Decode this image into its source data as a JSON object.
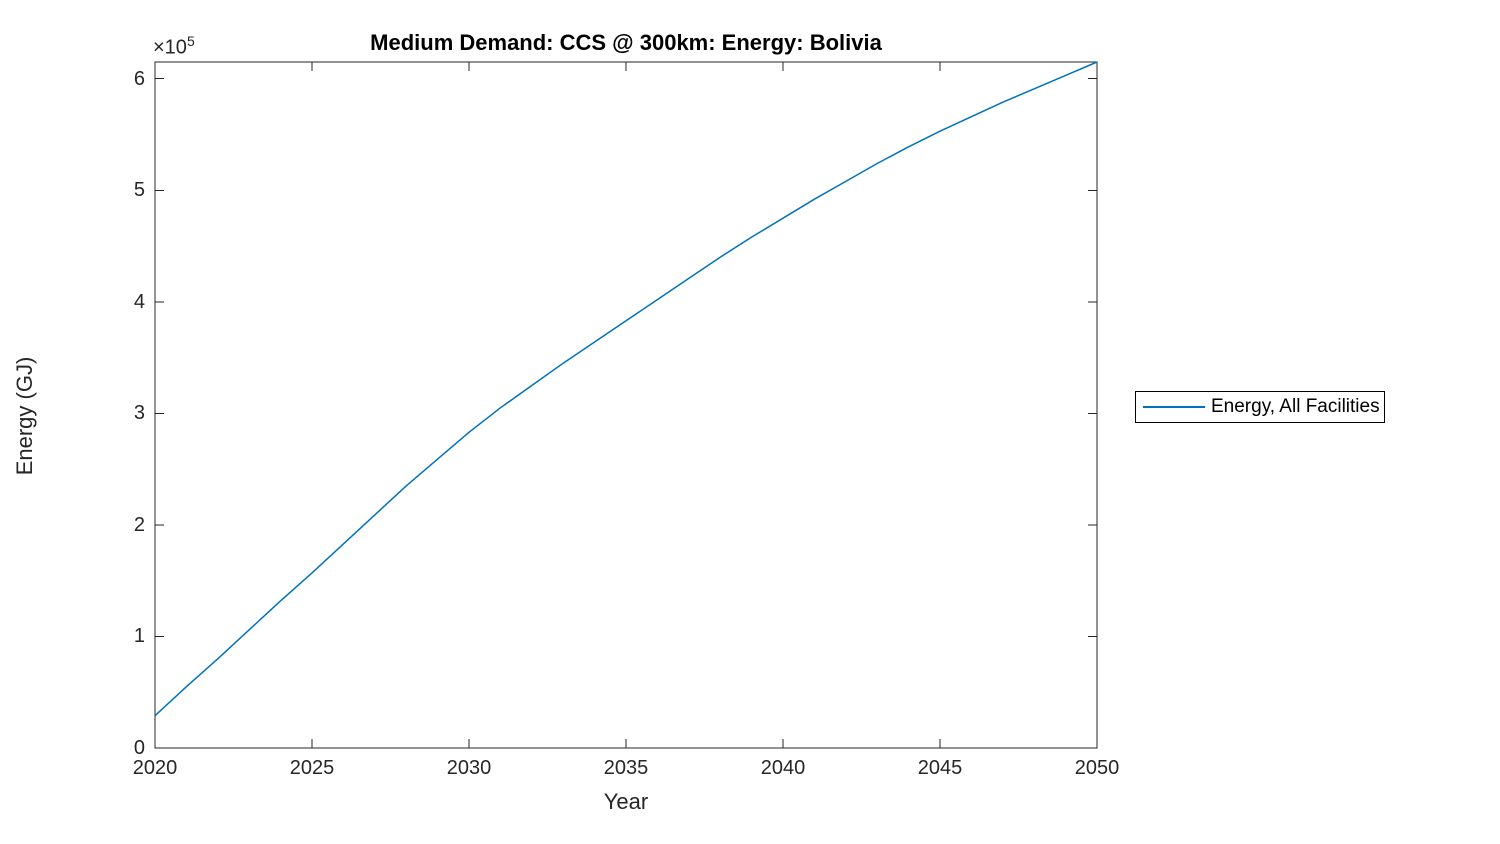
{
  "figure": {
    "background": "#ffffff"
  },
  "title": "Medium Demand: CCS @ 300km: Energy: Bolivia",
  "axis": {
    "xlabel": "Year",
    "ylabel": "Energy (GJ)",
    "exponent_base": "×10",
    "exponent_power": "5",
    "axis_color": "#262626"
  },
  "legend": {
    "label": "Energy, All Facilities",
    "line_color": "#0072BD"
  },
  "chart_data": {
    "type": "line",
    "title": "Medium Demand: CCS @ 300km: Energy: Bolivia",
    "xlabel": "Year",
    "ylabel": "Energy (GJ)",
    "xlim": [
      2020,
      2050
    ],
    "ylim": [
      0,
      615000
    ],
    "xticks": [
      2020,
      2025,
      2030,
      2035,
      2040,
      2045,
      2050
    ],
    "xtick_labels": [
      "2020",
      "2025",
      "2030",
      "2035",
      "2040",
      "2045",
      "2050"
    ],
    "yticks": [
      0,
      100000,
      200000,
      300000,
      400000,
      500000,
      600000
    ],
    "ytick_labels": [
      "0",
      "1",
      "2",
      "3",
      "4",
      "5",
      "6"
    ],
    "y_multiplier": 100000,
    "y_multiplier_label": "×10^5",
    "grid": false,
    "legend_position": "right-outside",
    "legend_entries": [
      "Energy, All Facilities"
    ],
    "series": [
      {
        "name": "Energy, All Facilities",
        "color": "#0072BD",
        "x": [
          2020,
          2021,
          2022,
          2023,
          2024,
          2025,
          2026,
          2027,
          2028,
          2029,
          2030,
          2031,
          2032,
          2033,
          2034,
          2035,
          2036,
          2037,
          2038,
          2039,
          2040,
          2041,
          2042,
          2043,
          2044,
          2045,
          2046,
          2047,
          2048,
          2049,
          2050
        ],
        "values": [
          29000,
          55000,
          80000,
          106000,
          132000,
          157000,
          183000,
          209000,
          235000,
          259000,
          283000,
          305000,
          325000,
          345000,
          364000,
          383000,
          402000,
          421000,
          440000,
          458000,
          475000,
          492000,
          508000,
          524000,
          539000,
          553000,
          566000,
          579000,
          591000,
          603000,
          615000
        ]
      }
    ]
  }
}
